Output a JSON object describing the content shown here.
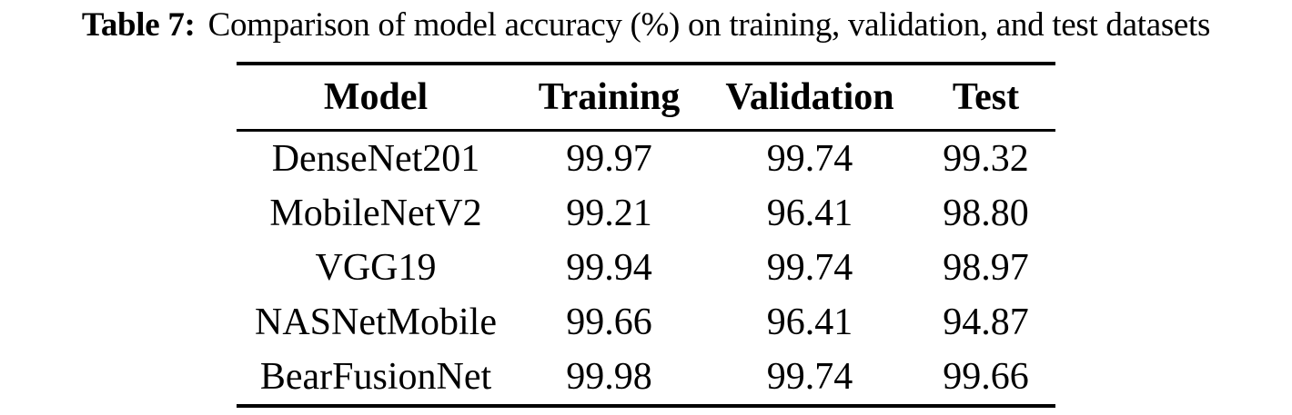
{
  "caption": {
    "label": "Table 7:",
    "text": "Comparison of model accuracy (%) on training, validation, and test datasets"
  },
  "table": {
    "columns": [
      "Model",
      "Training",
      "Validation",
      "Test"
    ],
    "rows": [
      {
        "model": "DenseNet201",
        "training": "99.97",
        "validation": "99.74",
        "test": "99.32"
      },
      {
        "model": "MobileNetV2",
        "training": "99.21",
        "validation": "96.41",
        "test": "98.80"
      },
      {
        "model": "VGG19",
        "training": "99.94",
        "validation": "99.74",
        "test": "98.97"
      },
      {
        "model": "NASNetMobile",
        "training": "99.66",
        "validation": "96.41",
        "test": "94.87"
      },
      {
        "model": "BearFusionNet",
        "training": "99.98",
        "validation": "99.74",
        "test": "99.66"
      }
    ]
  },
  "colors": {
    "text": "#000000",
    "background": "#ffffff",
    "rule": "#000000"
  }
}
